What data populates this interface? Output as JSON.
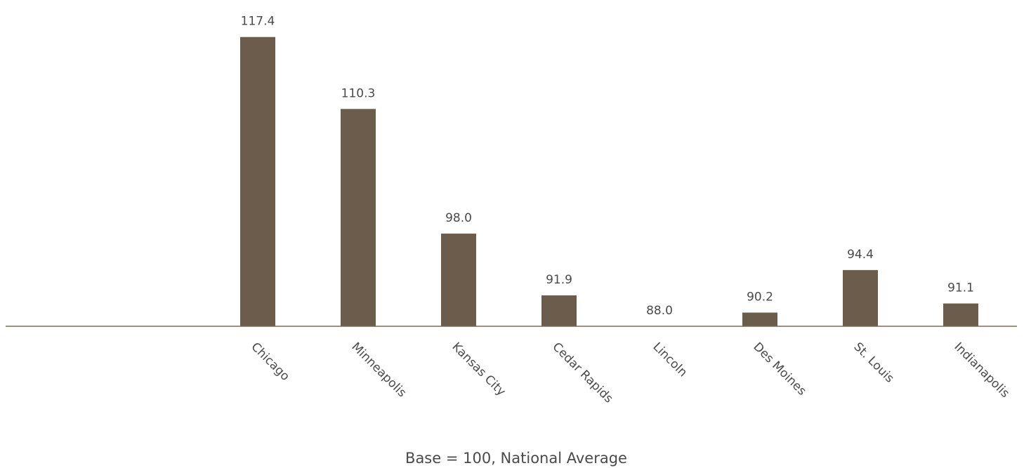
{
  "chart_data": {
    "type": "bar",
    "categories": [
      "Chicago",
      "Minneapolis",
      "Kansas City",
      "Cedar Rapids",
      "Lincoln",
      "Des Moines",
      "St. Louis",
      "Indianapolis"
    ],
    "values": [
      117.4,
      110.3,
      98.0,
      91.9,
      88.0,
      90.2,
      94.4,
      91.1
    ],
    "value_labels": [
      "117.4",
      "110.3",
      "98.0",
      "91.9",
      "88.0",
      "90.2",
      "94.4",
      "91.1"
    ],
    "xlabel": "Base = 100, National Average",
    "ylabel": "",
    "grid": false,
    "legend": "none",
    "colors": {
      "bar": "#6b5c4b",
      "axis": "#7a6a58",
      "text": "#4a4a4a"
    }
  }
}
